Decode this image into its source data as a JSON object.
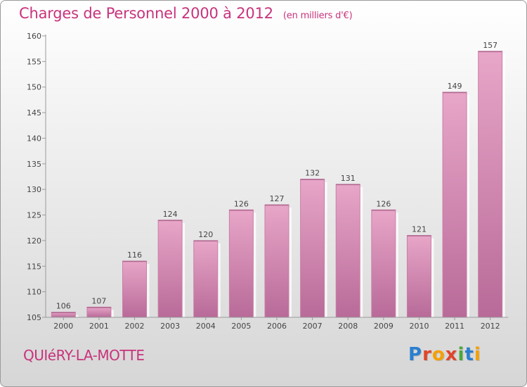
{
  "title": "Charges de Personnel 2000 à 2012",
  "unit_note": "(en milliers d'€)",
  "commune": "QUIéRY-LA-MOTTE",
  "logo": {
    "text": "Proxiti",
    "letters": [
      {
        "ch": "P",
        "color": "#2a7fd0"
      },
      {
        "ch": "r",
        "color": "#e0462a"
      },
      {
        "ch": "o",
        "color": "#f5a000"
      },
      {
        "ch": "x",
        "color": "#e0462a"
      },
      {
        "ch": "i",
        "color": "#4aa83a"
      },
      {
        "ch": "t",
        "color": "#2a7fd0"
      },
      {
        "ch": "i",
        "color": "#f5a000"
      }
    ]
  },
  "colors": {
    "accent": "#c8337c",
    "bar": "#d06a9e",
    "bar_light": "#e8a6c8",
    "axis": "#9a9a9a"
  },
  "chart_data": {
    "type": "bar",
    "title": "Charges de Personnel 2000 à 2012",
    "subtitle": "(en milliers d'€)",
    "xlabel": "",
    "ylabel": "",
    "categories": [
      "2000",
      "2001",
      "2002",
      "2003",
      "2004",
      "2005",
      "2006",
      "2007",
      "2008",
      "2009",
      "2010",
      "2011",
      "2012"
    ],
    "values": [
      106,
      107,
      116,
      124,
      120,
      126,
      127,
      132,
      131,
      126,
      121,
      149,
      157
    ],
    "ylim": [
      105,
      160
    ],
    "yticks": [
      105,
      110,
      115,
      120,
      125,
      130,
      135,
      140,
      145,
      150,
      155,
      160
    ],
    "grid": false,
    "legend": "none"
  }
}
